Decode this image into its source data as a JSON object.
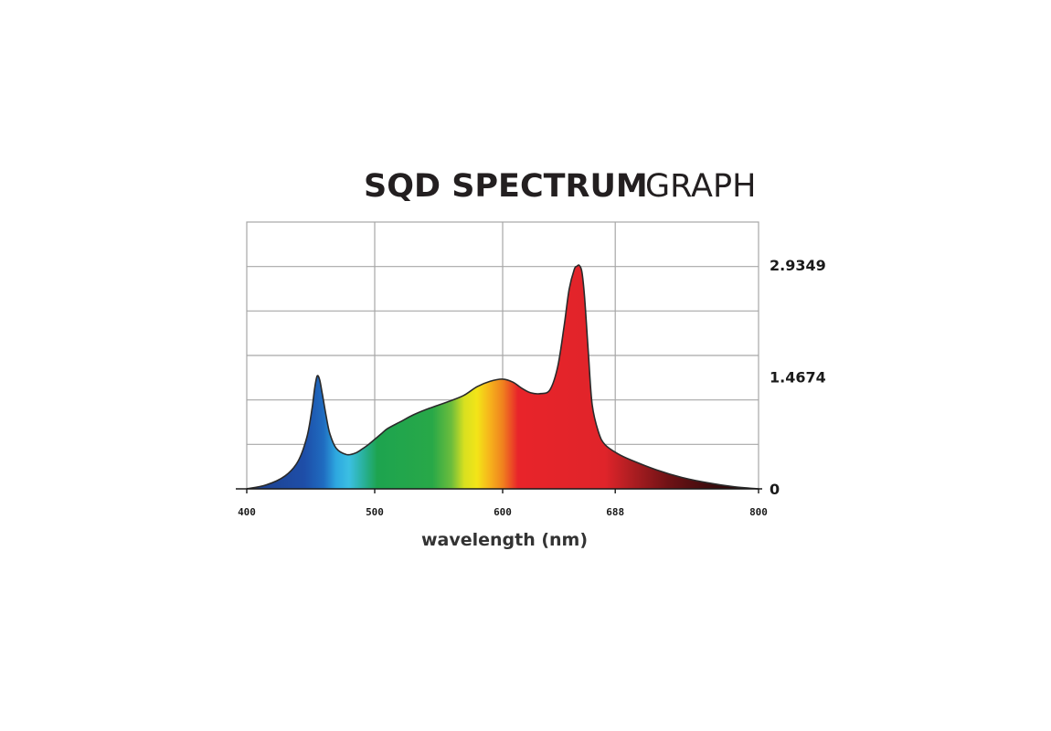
{
  "chart_data": {
    "type": "area",
    "title_bold": "SQD SPECTRUM",
    "title_light": "GRAPH",
    "xlabel": "wavelength (nm)",
    "ylabel": "",
    "xlim": [
      400,
      800
    ],
    "ylim": [
      0,
      3.5
    ],
    "grid": true,
    "x_ticks": [
      {
        "value": 400,
        "label": "400"
      },
      {
        "value": 500,
        "label": "500"
      },
      {
        "value": 600,
        "label": "600"
      },
      {
        "value": 688,
        "label": "688"
      },
      {
        "value": 800,
        "label": "800"
      }
    ],
    "y_ticks": [
      {
        "value": 2.9349,
        "label": "2.9349"
      },
      {
        "value": 1.4674,
        "label": "1.4674"
      },
      {
        "value": 0,
        "label": "0"
      }
    ],
    "series": [
      {
        "x": [
          400,
          415,
          430,
          440,
          447,
          451,
          453,
          455,
          457,
          459,
          462,
          465,
          470,
          478,
          485,
          490,
          495,
          500,
          505,
          510,
          520,
          530,
          540,
          550,
          560,
          570,
          580,
          590,
          600,
          608,
          615,
          622,
          630,
          637,
          643,
          648,
          652,
          656,
          658,
          660,
          662,
          664,
          667,
          670,
          675,
          680,
          690,
          700,
          720,
          740,
          760,
          780,
          800
        ],
        "y": [
          0.0,
          0.05,
          0.17,
          0.36,
          0.68,
          1.05,
          1.31,
          1.48,
          1.43,
          1.25,
          0.96,
          0.72,
          0.53,
          0.45,
          0.47,
          0.52,
          0.58,
          0.65,
          0.72,
          0.79,
          0.88,
          0.97,
          1.04,
          1.1,
          1.16,
          1.23,
          1.34,
          1.41,
          1.44,
          1.4,
          1.32,
          1.26,
          1.25,
          1.3,
          1.6,
          2.13,
          2.62,
          2.88,
          2.92,
          2.93,
          2.84,
          2.52,
          1.78,
          1.1,
          0.74,
          0.58,
          0.46,
          0.38,
          0.25,
          0.15,
          0.08,
          0.03,
          0.0
        ]
      }
    ],
    "gradient_stops": [
      {
        "nm": 400,
        "color": "#1c3e8a"
      },
      {
        "nm": 445,
        "color": "#1e4ea8"
      },
      {
        "nm": 460,
        "color": "#1f6cc0"
      },
      {
        "nm": 470,
        "color": "#2ea8e0"
      },
      {
        "nm": 480,
        "color": "#3bbfe2"
      },
      {
        "nm": 492,
        "color": "#28b096"
      },
      {
        "nm": 502,
        "color": "#1da44f"
      },
      {
        "nm": 545,
        "color": "#28a848"
      },
      {
        "nm": 560,
        "color": "#6cbd3c"
      },
      {
        "nm": 570,
        "color": "#d8e020"
      },
      {
        "nm": 580,
        "color": "#f3e418"
      },
      {
        "nm": 590,
        "color": "#f6b31c"
      },
      {
        "nm": 600,
        "color": "#f0821e"
      },
      {
        "nm": 612,
        "color": "#e8242a"
      },
      {
        "nm": 680,
        "color": "#e0242a"
      },
      {
        "nm": 700,
        "color": "#b01e22"
      },
      {
        "nm": 730,
        "color": "#6e1215"
      },
      {
        "nm": 765,
        "color": "#3a0b0d"
      },
      {
        "nm": 800,
        "color": "#1e0607"
      }
    ],
    "outline_color": "#2a2a2a",
    "grid_color": "#a7a7a7"
  }
}
